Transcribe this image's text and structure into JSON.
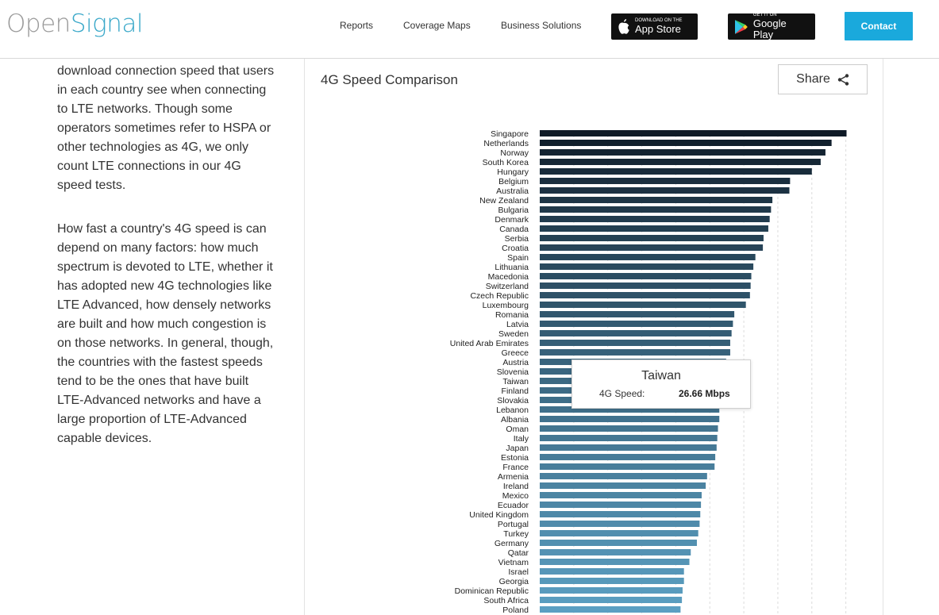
{
  "brand": {
    "part1": "Open",
    "part2": "Signal"
  },
  "nav": {
    "reports": "Reports",
    "coverage_maps": "Coverage Maps",
    "business_solutions": "Business Solutions",
    "app_store_small": "Download on the",
    "app_store_big": "App Store",
    "google_play_small": "GET IT ON",
    "google_play_big": "Google Play",
    "contact": "Contact"
  },
  "article": {
    "p1": "download connection speed that users in each country see when connecting to LTE networks. Though some operators sometimes refer to HSPA or other technologies as 4G, we only count LTE connections in our 4G speed tests.",
    "p2": "How fast a country's 4G speed is can depend on many factors: how much spectrum is devoted to LTE, whether it has adopted new 4G technologies like LTE Advanced, how densely networks are built and how much congestion is on those networks. In general, though, the countries with the fastest speeds tend to be the ones that have built LTE-Advanced networks and have a large proportion of LTE-Advanced capable devices."
  },
  "chart_panel": {
    "title": "4G Speed Comparison",
    "share_label": "Share"
  },
  "tooltip": {
    "title": "Taiwan",
    "label": "4G Speed:",
    "value": "26.66 Mbps"
  },
  "colors": {
    "dark": "#0e1a26",
    "light": "#5b9fc2",
    "accent": "#1aa9dc"
  },
  "chart_data": {
    "type": "bar",
    "orientation": "horizontal",
    "title": "4G Speed Comparison",
    "xlim": [
      0,
      46
    ],
    "grid": true,
    "categories": [
      "Singapore",
      "Netherlands",
      "Norway",
      "South Korea",
      "Hungary",
      "Belgium",
      "Australia",
      "New Zealand",
      "Bulgaria",
      "Denmark",
      "Canada",
      "Serbia",
      "Croatia",
      "Spain",
      "Lithuania",
      "Macedonia",
      "Switzerland",
      "Czech Republic",
      "Luxembourg",
      "Romania",
      "Latvia",
      "Sweden",
      "United Arab Emirates",
      "Greece",
      "Austria",
      "Slovenia",
      "Taiwan",
      "Finland",
      "Slovakia",
      "Lebanon",
      "Albania",
      "Oman",
      "Italy",
      "Japan",
      "Estonia",
      "France",
      "Armenia",
      "Ireland",
      "Mexico",
      "Ecuador",
      "United Kingdom",
      "Portugal",
      "Turkey",
      "Germany",
      "Qatar",
      "Vietnam",
      "Israel",
      "Georgia",
      "Dominican Republic",
      "South Africa",
      "Poland"
    ],
    "values": [
      45.1,
      42.9,
      42.0,
      41.3,
      40.0,
      36.8,
      36.7,
      34.2,
      34.0,
      33.8,
      33.6,
      32.9,
      32.8,
      31.7,
      31.4,
      31.1,
      31.0,
      30.9,
      30.3,
      28.6,
      28.4,
      28.2,
      28.0,
      28.0,
      27.4,
      27.0,
      26.66,
      26.6,
      26.5,
      26.4,
      26.4,
      26.2,
      26.1,
      26.0,
      25.8,
      25.7,
      24.6,
      24.4,
      23.8,
      23.7,
      23.6,
      23.5,
      23.3,
      23.1,
      22.2,
      22.0,
      21.2,
      21.2,
      21.0,
      20.9,
      20.7
    ]
  }
}
